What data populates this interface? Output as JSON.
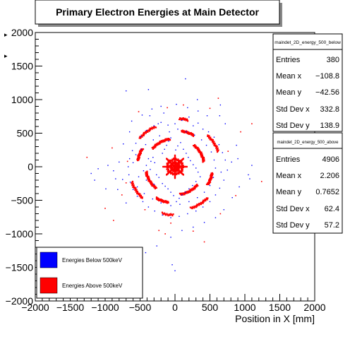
{
  "title": "Primary Electron Energies at Main Detector",
  "colors": {
    "below": "#0000ff",
    "above": "#ff0000",
    "frame": "#000000",
    "background": "#ffffff"
  },
  "stats_boxes": [
    {
      "name": "maindet_2D_energy_500_below",
      "rows": [
        {
          "label": "Entries",
          "value": "380"
        },
        {
          "label": "Mean x",
          "value": "−108.8"
        },
        {
          "label": "Mean y",
          "value": "−42.56"
        },
        {
          "label": "Std Dev x",
          "value": "332.8"
        },
        {
          "label": "Std Dev y",
          "value": "138.9"
        }
      ]
    },
    {
      "name": "maindet_2D_energy_500_above",
      "rows": [
        {
          "label": "Entries",
          "value": "4906"
        },
        {
          "label": "Mean x",
          "value": "2.206"
        },
        {
          "label": "Mean y",
          "value": "0.7652"
        },
        {
          "label": "Std Dev x",
          "value": "62.4"
        },
        {
          "label": "Std Dev y",
          "value": "57.2"
        }
      ]
    }
  ],
  "legend": [
    {
      "label": "Energies Below 500keV",
      "color": "#0000ff"
    },
    {
      "label": "Energies Above 500keV",
      "color": "#ff0000"
    }
  ],
  "chart_data": {
    "type": "scatter",
    "title": "Primary Electron Energies at Main Detector",
    "xlabel": "Position in X [mm]",
    "ylabel": "",
    "xlim": [
      -2000,
      2000
    ],
    "ylim": [
      -2000,
      2000
    ],
    "xticks": [
      -2000,
      -1500,
      -1000,
      -500,
      0,
      500,
      1000,
      1500,
      2000
    ],
    "yticks": [
      -2000,
      -1500,
      -1000,
      -500,
      0,
      500,
      1000,
      1500,
      2000
    ],
    "grid": false,
    "legend_position": "bottom-left",
    "series": [
      {
        "name": "Energies Below 500keV",
        "color": "#0000ff",
        "points": [
          [
            -380,
            120
          ],
          [
            -345,
            80
          ],
          [
            -315,
            140
          ],
          [
            -290,
            60
          ],
          [
            -410,
            20
          ],
          [
            -450,
            -60
          ],
          [
            -355,
            -40
          ],
          [
            -265,
            -120
          ],
          [
            -230,
            -160
          ],
          [
            -410,
            -200
          ],
          [
            -300,
            -260
          ],
          [
            -180,
            200
          ],
          [
            -150,
            260
          ],
          [
            -120,
            320
          ],
          [
            -90,
            380
          ],
          [
            -60,
            430
          ],
          [
            10,
            250
          ],
          [
            40,
            310
          ],
          [
            80,
            360
          ],
          [
            120,
            260
          ],
          [
            160,
            200
          ],
          [
            190,
            140
          ],
          [
            220,
            90
          ],
          [
            260,
            30
          ],
          [
            300,
            -20
          ],
          [
            330,
            -80
          ],
          [
            360,
            -150
          ],
          [
            300,
            -220
          ],
          [
            250,
            -280
          ],
          [
            200,
            -330
          ],
          [
            150,
            -380
          ],
          [
            100,
            -420
          ],
          [
            60,
            -470
          ],
          [
            20,
            -520
          ],
          [
            -20,
            -430
          ],
          [
            -60,
            -380
          ],
          [
            -100,
            -330
          ],
          [
            -140,
            -290
          ],
          [
            -180,
            -250
          ],
          [
            -520,
            -150
          ],
          [
            -600,
            60
          ],
          [
            -560,
            180
          ],
          [
            -480,
            260
          ],
          [
            -420,
            330
          ],
          [
            -310,
            400
          ],
          [
            -220,
            460
          ],
          [
            -80,
            520
          ],
          [
            40,
            560
          ],
          [
            160,
            520
          ],
          [
            280,
            470
          ],
          [
            380,
            400
          ],
          [
            450,
            320
          ],
          [
            520,
            220
          ],
          [
            560,
            100
          ],
          [
            580,
            -20
          ],
          [
            550,
            -160
          ],
          [
            500,
            -280
          ],
          [
            420,
            -380
          ],
          [
            320,
            -460
          ],
          [
            200,
            -520
          ],
          [
            70,
            -560
          ],
          [
            -60,
            -580
          ],
          [
            -200,
            -540
          ],
          [
            -320,
            -480
          ],
          [
            -440,
            -400
          ],
          [
            -540,
            -300
          ],
          [
            -1150,
            -200
          ],
          [
            -1100,
            -30
          ],
          [
            -1200,
            -100
          ],
          [
            -800,
            70
          ],
          [
            -750,
            -190
          ],
          [
            -820,
            -340
          ],
          [
            -700,
            -540
          ],
          [
            -650,
            520
          ],
          [
            -740,
            340
          ],
          [
            -620,
            680
          ],
          [
            -470,
            770
          ],
          [
            -330,
            860
          ],
          [
            -200,
            900
          ],
          [
            20,
            930
          ],
          [
            180,
            880
          ],
          [
            330,
            830
          ],
          [
            460,
            760
          ],
          [
            640,
            760
          ],
          [
            720,
            640
          ],
          [
            880,
            320
          ],
          [
            900,
            120
          ],
          [
            1050,
            -120
          ],
          [
            920,
            -300
          ],
          [
            820,
            -460
          ],
          [
            700,
            -640
          ],
          [
            580,
            -760
          ],
          [
            420,
            -830
          ],
          [
            260,
            -900
          ],
          [
            100,
            -950
          ],
          [
            -60,
            -1050
          ],
          [
            -260,
            -1180
          ],
          [
            -420,
            -1280
          ],
          [
            -600,
            -1380
          ],
          [
            0,
            -1550
          ],
          [
            -40,
            -1460
          ],
          [
            -380,
            1150
          ],
          [
            -700,
            1130
          ],
          [
            150,
            1310
          ],
          [
            320,
            1000
          ],
          [
            650,
            920
          ],
          [
            1070,
            -180
          ],
          [
            1100,
            20
          ],
          [
            750,
            -50
          ],
          [
            810,
            70
          ],
          [
            -850,
            -180
          ],
          [
            -880,
            -60
          ],
          [
            -960,
            20
          ],
          [
            -990,
            -330
          ],
          [
            -360,
            760
          ],
          [
            -160,
            800
          ],
          [
            -240,
            640
          ],
          [
            -100,
            620
          ],
          [
            0,
            640
          ],
          [
            100,
            690
          ],
          [
            200,
            740
          ],
          [
            260,
            610
          ],
          [
            330,
            650
          ],
          [
            400,
            560
          ],
          [
            480,
            520
          ],
          [
            560,
            440
          ],
          [
            630,
            330
          ],
          [
            680,
            210
          ],
          [
            720,
            100
          ],
          [
            660,
            -80
          ],
          [
            700,
            -200
          ],
          [
            640,
            -320
          ],
          [
            580,
            -420
          ],
          [
            500,
            -520
          ],
          [
            400,
            -600
          ],
          [
            300,
            -660
          ],
          [
            180,
            -700
          ],
          [
            60,
            -740
          ],
          [
            -60,
            -760
          ],
          [
            -180,
            -720
          ],
          [
            -290,
            -660
          ],
          [
            -380,
            -600
          ],
          [
            -460,
            -520
          ],
          [
            -540,
            -440
          ],
          [
            -600,
            -340
          ],
          [
            -640,
            -230
          ],
          [
            -660,
            -120
          ],
          [
            -670,
            0
          ],
          [
            -650,
            120
          ],
          [
            -610,
            240
          ],
          [
            -560,
            350
          ],
          [
            -490,
            450
          ],
          [
            -410,
            540
          ],
          [
            -300,
            610
          ],
          [
            -200,
            660
          ]
        ]
      },
      {
        "name": "Energies Above 500keV",
        "color": "#ff0000",
        "arcs": [
          {
            "cx": 0,
            "cy": 0,
            "r": 60,
            "a0": 0,
            "a1": 360,
            "n": 60
          },
          {
            "cx": 0,
            "cy": 0,
            "r": 110,
            "a0": 0,
            "a1": 360,
            "n": 70
          },
          {
            "cx": 0,
            "cy": 0,
            "r": 25,
            "a0": 0,
            "a1": 360,
            "n": 20
          },
          {
            "cx": 0,
            "cy": 0,
            "r": 420,
            "a0": 100,
            "a1": 140,
            "n": 40
          },
          {
            "cx": 0,
            "cy": 0,
            "r": 420,
            "a0": 190,
            "a1": 230,
            "n": 40
          },
          {
            "cx": 0,
            "cy": 0,
            "r": 420,
            "a0": 280,
            "a1": 320,
            "n": 40
          },
          {
            "cx": 0,
            "cy": 0,
            "r": 420,
            "a0": 10,
            "a1": 50,
            "n": 40
          },
          {
            "cx": 0,
            "cy": 0,
            "r": 540,
            "a0": 60,
            "a1": 80,
            "n": 30
          },
          {
            "cx": 0,
            "cy": 0,
            "r": 540,
            "a0": 150,
            "a1": 170,
            "n": 30
          },
          {
            "cx": 0,
            "cy": 0,
            "r": 540,
            "a0": 240,
            "a1": 260,
            "n": 30
          },
          {
            "cx": 0,
            "cy": 0,
            "r": 540,
            "a0": 330,
            "a1": 350,
            "n": 30
          },
          {
            "cx": 0,
            "cy": 0,
            "r": 660,
            "a0": 115,
            "a1": 140,
            "n": 30
          },
          {
            "cx": 0,
            "cy": 0,
            "r": 660,
            "a0": 200,
            "a1": 225,
            "n": 30
          },
          {
            "cx": 0,
            "cy": 0,
            "r": 660,
            "a0": 290,
            "a1": 315,
            "n": 30
          },
          {
            "cx": 0,
            "cy": 0,
            "r": 660,
            "a0": 20,
            "a1": 45,
            "n": 30
          },
          {
            "cx": 0,
            "cy": 0,
            "r": 720,
            "a0": 75,
            "a1": 85,
            "n": 15
          },
          {
            "cx": 0,
            "cy": 0,
            "r": 720,
            "a0": 255,
            "a1": 268,
            "n": 15
          }
        ],
        "spokes": [
          {
            "angle": 0,
            "r0": 60,
            "r1": 170,
            "n": 14
          },
          {
            "angle": 45,
            "r0": 60,
            "r1": 170,
            "n": 14
          },
          {
            "angle": 90,
            "r0": 60,
            "r1": 170,
            "n": 14
          },
          {
            "angle": 135,
            "r0": 60,
            "r1": 170,
            "n": 14
          },
          {
            "angle": 180,
            "r0": 60,
            "r1": 170,
            "n": 14
          },
          {
            "angle": 225,
            "r0": 60,
            "r1": 170,
            "n": 14
          },
          {
            "angle": 270,
            "r0": 60,
            "r1": 170,
            "n": 14
          },
          {
            "angle": 315,
            "r0": 60,
            "r1": 170,
            "n": 14
          }
        ],
        "points": [
          [
            -700,
            -240
          ],
          [
            -680,
            80
          ],
          [
            -430,
            -640
          ],
          [
            -110,
            880
          ],
          [
            120,
            920
          ],
          [
            650,
            -700
          ],
          [
            760,
            230
          ],
          [
            -230,
            -950
          ],
          [
            940,
            520
          ],
          [
            -900,
            280
          ],
          [
            -760,
            -420
          ],
          [
            500,
            870
          ],
          [
            -520,
            820
          ],
          [
            870,
            -430
          ],
          [
            -60,
            -840
          ],
          [
            260,
            -960
          ],
          [
            1100,
            640
          ],
          [
            -1000,
            -620
          ],
          [
            420,
            -1120
          ],
          [
            -880,
            -800
          ],
          [
            -1260,
            140
          ],
          [
            1240,
            -220
          ],
          [
            -140,
            -1000
          ],
          [
            620,
            1020
          ]
        ]
      }
    ]
  }
}
